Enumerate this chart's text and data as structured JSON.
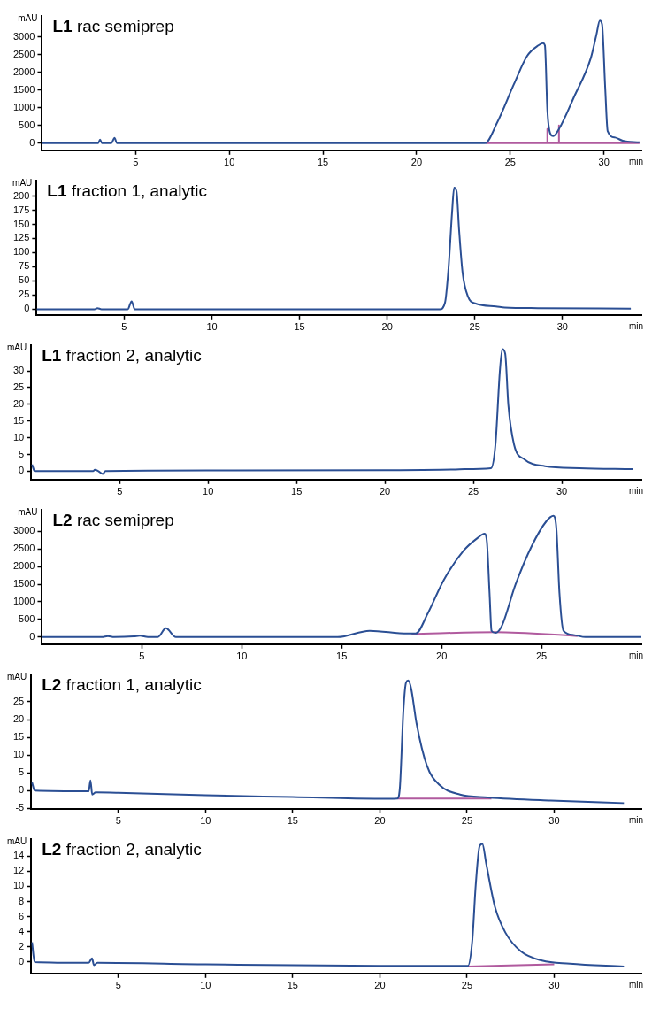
{
  "chart_data": [
    {
      "type": "line",
      "title": "L1 rac semiprep",
      "xlabel": "min",
      "ylabel": "mAU",
      "xlim": [
        0,
        32
      ],
      "xticks": [
        5,
        10,
        15,
        20,
        25,
        30
      ],
      "ylim": [
        -200,
        3600
      ],
      "yticks": [
        0,
        500,
        1000,
        1500,
        2000,
        2500,
        3000
      ],
      "marker": "none",
      "series": [
        {
          "color": "#2b4f94",
          "x": [
            0,
            3.0,
            3.1,
            3.2,
            3.7,
            3.87,
            4.0,
            10,
            20,
            23.65,
            24.3,
            25.2,
            25.9,
            26.5,
            26.75,
            26.85,
            26.98,
            27.13,
            27.3,
            27.6,
            28.4,
            29.3,
            29.6,
            29.78,
            29.9,
            30.07,
            30.2,
            30.6,
            31.0,
            31.9
          ],
          "values": [
            0,
            0,
            100,
            0,
            0,
            150,
            0,
            0,
            0,
            0,
            580,
            1670,
            2460,
            2760,
            2820,
            2760,
            940,
            280,
            200,
            400,
            1300,
            2400,
            3060,
            3460,
            3360,
            1550,
            340,
            160,
            70,
            25
          ]
        },
        {
          "color": "#b05a9e",
          "x": [
            23.7,
            26.98,
            26.98,
            26.98,
            27.6,
            27.6,
            27.6,
            31.9
          ],
          "values": [
            0,
            0,
            400,
            0,
            0,
            500,
            0,
            0
          ]
        }
      ]
    },
    {
      "type": "line",
      "title": "L1 fraction 1, analytic",
      "xlabel": "min",
      "ylabel": "mAU",
      "xlim": [
        0,
        34.5
      ],
      "xticks": [
        5,
        10,
        15,
        20,
        25,
        30
      ],
      "ylim": [
        -10,
        228
      ],
      "yticks": [
        0,
        25,
        50,
        75,
        100,
        125,
        150,
        175,
        200
      ],
      "marker": "none",
      "series": [
        {
          "color": "#2b4f94",
          "x": [
            0,
            3.3,
            3.47,
            3.7,
            5.2,
            5.42,
            5.6,
            10,
            20,
            23.0,
            23.3,
            23.5,
            23.7,
            23.82,
            23.96,
            24.1,
            24.3,
            24.6,
            25.05,
            26.2,
            26.7,
            28.6,
            33.9
          ],
          "values": [
            0,
            0,
            2,
            0,
            0,
            14,
            0,
            0,
            0,
            0,
            12,
            73,
            171,
            215,
            208,
            141,
            65,
            23,
            10,
            5,
            3,
            2,
            1
          ]
        }
      ]
    },
    {
      "type": "line",
      "title": "L1 fraction 2, analytic",
      "xlabel": "min",
      "ylabel": "mAU",
      "xlim": [
        0,
        34.5
      ],
      "xticks": [
        5,
        10,
        15,
        20,
        25,
        30
      ],
      "ylim": [
        -2.5,
        37.8
      ],
      "yticks": [
        0,
        5,
        10,
        15,
        20,
        25,
        30
      ],
      "marker": "none",
      "series": [
        {
          "color": "#2b4f94",
          "x": [
            0.05,
            0.2,
            3.5,
            3.6,
            3.8,
            4.05,
            4.2,
            10,
            20,
            24,
            24.5,
            26.0,
            26.25,
            26.5,
            26.64,
            26.8,
            26.98,
            27.3,
            27.9,
            29.05,
            31.0,
            34.0
          ],
          "values": [
            2,
            0,
            0,
            0.4,
            0,
            -0.8,
            0,
            0.2,
            0.3,
            0.5,
            0.6,
            0.9,
            8,
            30,
            36.5,
            35.2,
            19.7,
            8,
            3.5,
            1.5,
            0.9,
            0.6
          ]
        }
      ]
    },
    {
      "type": "line",
      "title": "L2 rac semiprep",
      "xlabel": "min",
      "ylabel": "mAU",
      "xlim": [
        0,
        30
      ],
      "xticks": [
        5,
        10,
        15,
        20,
        25
      ],
      "ylim": [
        -200,
        3620
      ],
      "yticks": [
        0,
        500,
        1000,
        1500,
        2000,
        2500,
        3000
      ],
      "marker": "none",
      "series": [
        {
          "color": "#2b4f94",
          "x": [
            0,
            3.0,
            3.3,
            3.6,
            4.6,
            4.9,
            5.3,
            5.8,
            6.2,
            6.7,
            7.0,
            14.8,
            16.4,
            18.3,
            18.7,
            19.3,
            20.1,
            21.1,
            21.8,
            22.15,
            22.27,
            22.4,
            22.5,
            22.7,
            23.0,
            23.7,
            24.5,
            25.25,
            25.6,
            25.75,
            25.9,
            26.1,
            26.6,
            27.2,
            30
          ],
          "values": [
            0,
            0,
            30,
            0,
            20,
            40,
            0,
            0,
            250,
            0,
            0,
            0,
            180,
            100,
            100,
            660,
            1610,
            2450,
            2810,
            2930,
            2690,
            1250,
            180,
            120,
            300,
            1490,
            2570,
            3290,
            3440,
            3050,
            1250,
            180,
            60,
            0,
            0
          ]
        },
        {
          "color": "#b05a9e",
          "x": [
            18.5,
            22.7,
            26.8
          ],
          "values": [
            90,
            140,
            30
          ]
        }
      ]
    },
    {
      "type": "line",
      "title": "L2 fraction 1, analytic",
      "xlabel": "min",
      "ylabel": "mAU",
      "xlim": [
        0,
        35
      ],
      "xticks": [
        5,
        10,
        15,
        20,
        25,
        30
      ],
      "ylim": [
        -5.1,
        32.8
      ],
      "yticks": [
        -5,
        0,
        5,
        10,
        15,
        20,
        25
      ],
      "marker": "none",
      "series": [
        {
          "color": "#2b4f94",
          "x": [
            0.05,
            0.2,
            3.3,
            3.4,
            3.5,
            3.7,
            5,
            10,
            15,
            20,
            21.0,
            21.15,
            21.35,
            21.5,
            21.63,
            21.8,
            22.1,
            22.7,
            23.4,
            24.6,
            26.2,
            29.8,
            34.0
          ],
          "values": [
            2.3,
            0,
            -0.2,
            2.9,
            -1.1,
            -0.5,
            -0.6,
            -1.3,
            -1.8,
            -2.3,
            -2.2,
            1,
            22.6,
            30.4,
            31,
            28.6,
            19,
            7,
            1.7,
            -1.1,
            -1.9,
            -2.8,
            -3.5
          ]
        },
        {
          "color": "#b05a9e",
          "x": [
            21.0,
            26.4
          ],
          "values": [
            -2.2,
            -2.2
          ]
        }
      ]
    },
    {
      "type": "line",
      "title": "L2 fraction 2, analytic",
      "xlabel": "min",
      "ylabel": "mAU",
      "xlim": [
        0,
        35
      ],
      "xticks": [
        5,
        10,
        15,
        20,
        25,
        30
      ],
      "ylim": [
        -1.5,
        16.3
      ],
      "yticks": [
        0,
        2,
        4,
        6,
        8,
        10,
        12,
        14
      ],
      "marker": "none",
      "series": [
        {
          "color": "#2b4f94",
          "x": [
            0.05,
            0.2,
            3.3,
            3.49,
            3.6,
            3.8,
            10,
            20,
            25.05,
            25.3,
            25.5,
            25.72,
            25.88,
            26.1,
            26.6,
            27.2,
            28.1,
            29.3,
            30.9,
            34.0
          ],
          "values": [
            2.6,
            0,
            -0.1,
            0.5,
            -0.4,
            -0.1,
            -0.3,
            -0.5,
            -0.5,
            2.8,
            10.2,
            15.3,
            15.6,
            13,
            7.3,
            3.9,
            1.4,
            0.2,
            -0.2,
            -0.6
          ]
        },
        {
          "color": "#b05a9e",
          "x": [
            25.05,
            30.0
          ],
          "values": [
            -0.6,
            -0.3
          ]
        }
      ]
    }
  ]
}
